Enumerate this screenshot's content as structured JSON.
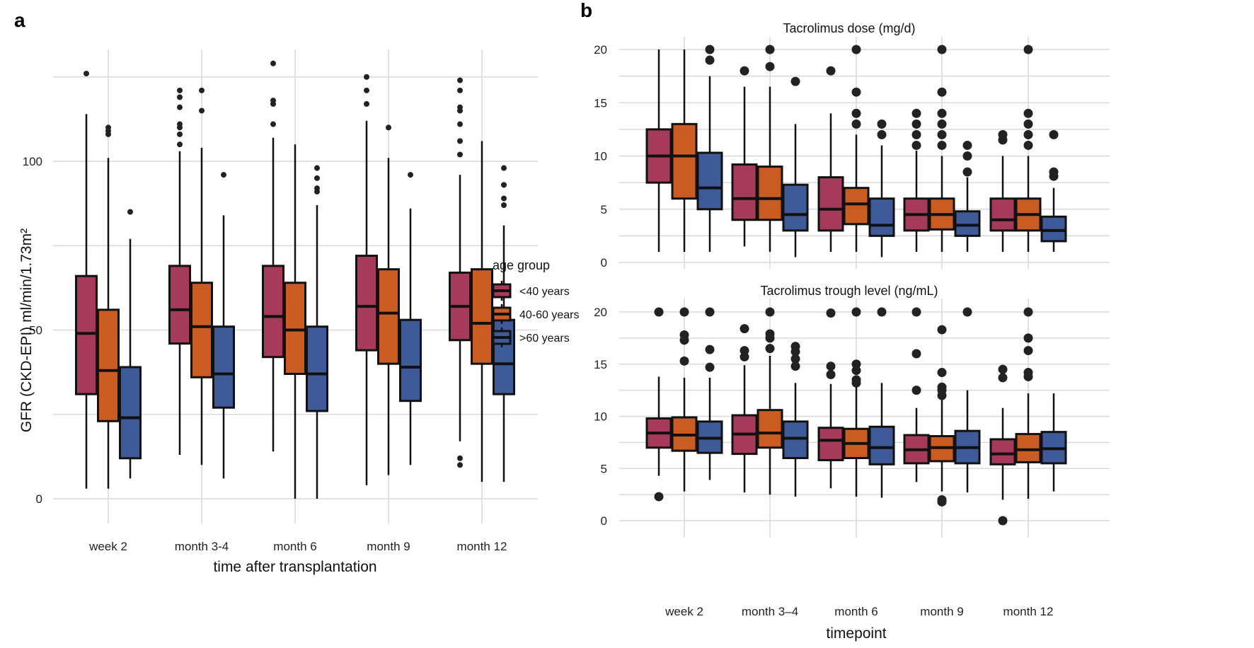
{
  "colors": {
    "lt40": "#a53a5b",
    "40to60": "#c95b23",
    "gt60": "#3f5a98",
    "grid": "#d9d9d9",
    "outlier": "#222222"
  },
  "legend": {
    "title": "age group",
    "placement": "right of panel a",
    "items": [
      {
        "key": "lt40",
        "label": "<40 years"
      },
      {
        "key": "40to60",
        "label": "40-60 years"
      },
      {
        "key": "gt60",
        "label": ">60 years"
      }
    ]
  },
  "chart_data": [
    {
      "panel": "a",
      "type": "box",
      "title": "",
      "xlabel": "time after transplantation",
      "ylabel": "GFR (CKD-EPI) ml/min/1.73m²",
      "ylim": [
        0,
        125
      ],
      "yticks": [
        0,
        50,
        100
      ],
      "grid": true,
      "categories": [
        "week 2",
        "month 3-4",
        "month 6",
        "month 9",
        "month 12"
      ],
      "series": [
        {
          "name": "<40 years",
          "key": "lt40",
          "boxes": [
            {
              "low": 3,
              "q1": 31,
              "median": 49,
              "q3": 66,
              "high": 114,
              "outliers": [
                126
              ]
            },
            {
              "low": 13,
              "q1": 46,
              "median": 56,
              "q3": 69,
              "high": 103,
              "outliers": [
                105,
                108,
                110,
                111,
                116,
                119,
                121
              ]
            },
            {
              "low": 14,
              "q1": 42,
              "median": 54,
              "q3": 69,
              "high": 107,
              "outliers": [
                111,
                117,
                118,
                129
              ]
            },
            {
              "low": 4,
              "q1": 44,
              "median": 57,
              "q3": 72,
              "high": 112,
              "outliers": [
                117,
                121,
                125
              ]
            },
            {
              "low": 17,
              "q1": 47,
              "median": 57,
              "q3": 67,
              "high": 96,
              "outliers": [
                10,
                12,
                102,
                106,
                111,
                115,
                116,
                121,
                124
              ]
            }
          ]
        },
        {
          "name": "40-60 years",
          "key": "40to60",
          "boxes": [
            {
              "low": 3,
              "q1": 23,
              "median": 38,
              "q3": 56,
              "high": 101,
              "outliers": [
                108,
                109,
                110
              ]
            },
            {
              "low": 10,
              "q1": 36,
              "median": 51,
              "q3": 64,
              "high": 104,
              "outliers": [
                115,
                121
              ]
            },
            {
              "low": 0,
              "q1": 37,
              "median": 50,
              "q3": 64,
              "high": 105,
              "outliers": []
            },
            {
              "low": 7,
              "q1": 40,
              "median": 55,
              "q3": 68,
              "high": 101,
              "outliers": [
                110
              ]
            },
            {
              "low": 5,
              "q1": 40,
              "median": 52,
              "q3": 68,
              "high": 106,
              "outliers": []
            }
          ]
        },
        {
          "name": ">60 years",
          "key": "gt60",
          "boxes": [
            {
              "low": 6,
              "q1": 12,
              "median": 24,
              "q3": 39,
              "high": 77,
              "outliers": [
                85
              ]
            },
            {
              "low": 6,
              "q1": 27,
              "median": 37,
              "q3": 51,
              "high": 84,
              "outliers": [
                96
              ]
            },
            {
              "low": 0,
              "q1": 26,
              "median": 37,
              "q3": 51,
              "high": 87,
              "outliers": [
                91,
                92,
                95,
                98
              ]
            },
            {
              "low": 10,
              "q1": 29,
              "median": 39,
              "q3": 53,
              "high": 86,
              "outliers": [
                96
              ]
            },
            {
              "low": 5,
              "q1": 31,
              "median": 40,
              "q3": 53,
              "high": 81,
              "outliers": [
                87,
                89,
                93,
                98
              ]
            }
          ]
        }
      ]
    },
    {
      "panel": "b-top",
      "type": "box",
      "title": "Tacrolimus dose (mg/d)",
      "xlabel": "",
      "ylabel": "",
      "ylim": [
        0,
        20
      ],
      "yticks": [
        0,
        5,
        10,
        15,
        20
      ],
      "grid": true,
      "categories": [
        "week 2",
        "month 3–4",
        "month 6",
        "month 9",
        "month 12"
      ],
      "series": [
        {
          "name": "<40 years",
          "key": "lt40",
          "boxes": [
            {
              "low": 1,
              "q1": 7.5,
              "median": 10,
              "q3": 12.5,
              "high": 20,
              "outliers": []
            },
            {
              "low": 1.5,
              "q1": 4,
              "median": 6,
              "q3": 9.2,
              "high": 16.5,
              "outliers": [
                18
              ]
            },
            {
              "low": 1,
              "q1": 3,
              "median": 5,
              "q3": 8,
              "high": 14,
              "outliers": [
                18
              ]
            },
            {
              "low": 1,
              "q1": 3,
              "median": 4.5,
              "q3": 6,
              "high": 10.5,
              "outliers": [
                11,
                12,
                13,
                14
              ]
            },
            {
              "low": 1,
              "q1": 3,
              "median": 4,
              "q3": 6,
              "high": 10,
              "outliers": [
                11.5,
                12
              ]
            }
          ]
        },
        {
          "name": "40-60 years",
          "key": "40to60",
          "boxes": [
            {
              "low": 1,
              "q1": 6,
              "median": 10,
              "q3": 13,
              "high": 20,
              "outliers": []
            },
            {
              "low": 1,
              "q1": 4,
              "median": 6,
              "q3": 9,
              "high": 16.5,
              "outliers": [
                18.4,
                20
              ]
            },
            {
              "low": 1,
              "q1": 3.6,
              "median": 5.5,
              "q3": 7,
              "high": 12,
              "outliers": [
                13,
                14,
                16,
                20
              ]
            },
            {
              "low": 1,
              "q1": 3.1,
              "median": 4.5,
              "q3": 6,
              "high": 10,
              "outliers": [
                11,
                12,
                13,
                14,
                16,
                20
              ]
            },
            {
              "low": 1,
              "q1": 3,
              "median": 4.5,
              "q3": 6,
              "high": 10,
              "outliers": [
                11,
                12,
                13,
                14,
                20
              ]
            }
          ]
        },
        {
          "name": ">60 years",
          "key": "gt60",
          "boxes": [
            {
              "low": 1,
              "q1": 5,
              "median": 7,
              "q3": 10.3,
              "high": 17.5,
              "outliers": [
                19,
                20
              ]
            },
            {
              "low": 0.5,
              "q1": 3,
              "median": 4.5,
              "q3": 7.3,
              "high": 13,
              "outliers": [
                17
              ]
            },
            {
              "low": 0.5,
              "q1": 2.5,
              "median": 3.5,
              "q3": 6,
              "high": 11,
              "outliers": [
                12,
                13
              ]
            },
            {
              "low": 1,
              "q1": 2.5,
              "median": 3.5,
              "q3": 4.8,
              "high": 8,
              "outliers": [
                8.5,
                10,
                11
              ]
            },
            {
              "low": 1,
              "q1": 2,
              "median": 3,
              "q3": 4.3,
              "high": 7,
              "outliers": [
                8.1,
                8.5,
                12
              ]
            }
          ]
        }
      ]
    },
    {
      "panel": "b-bottom",
      "type": "box",
      "title": "Tacrolimus trough level (ng/mL)",
      "xlabel": "timepoint",
      "ylabel": "",
      "ylim": [
        0,
        20
      ],
      "yticks": [
        0,
        5,
        10,
        15,
        20
      ],
      "grid": true,
      "categories": [
        "week 2",
        "month 3–4",
        "month 6",
        "month 9",
        "month 12"
      ],
      "series": [
        {
          "name": "<40 years",
          "key": "lt40",
          "boxes": [
            {
              "low": 4.3,
              "q1": 7,
              "median": 8.4,
              "q3": 9.8,
              "high": 13.8,
              "outliers": [
                2.3,
                20
              ]
            },
            {
              "low": 2.7,
              "q1": 6.4,
              "median": 8.3,
              "q3": 10.1,
              "high": 14.9,
              "outliers": [
                15.7,
                16.3,
                18.4
              ]
            },
            {
              "low": 3.1,
              "q1": 5.8,
              "median": 7.7,
              "q3": 8.9,
              "high": 13.1,
              "outliers": [
                14,
                14.8,
                19.9
              ]
            },
            {
              "low": 3.7,
              "q1": 5.5,
              "median": 6.8,
              "q3": 8.2,
              "high": 10.8,
              "outliers": [
                12.5,
                16,
                20
              ]
            },
            {
              "low": 2,
              "q1": 5.4,
              "median": 6.4,
              "q3": 7.8,
              "high": 10.8,
              "outliers": [
                0,
                13.7,
                14.5
              ]
            }
          ]
        },
        {
          "name": "40-60 years",
          "key": "40to60",
          "boxes": [
            {
              "low": 2.8,
              "q1": 6.7,
              "median": 8.2,
              "q3": 9.9,
              "high": 13.7,
              "outliers": [
                15.3,
                17.3,
                17.8,
                20
              ]
            },
            {
              "low": 2.5,
              "q1": 7,
              "median": 8.4,
              "q3": 10.6,
              "high": 15.8,
              "outliers": [
                16.5,
                17.5,
                17.9,
                20
              ]
            },
            {
              "low": 2.3,
              "q1": 6,
              "median": 7.4,
              "q3": 8.8,
              "high": 12.9,
              "outliers": [
                13.2,
                13.5,
                14.4,
                15,
                20
              ]
            },
            {
              "low": 2.8,
              "q1": 5.7,
              "median": 7,
              "q3": 8.1,
              "high": 11.6,
              "outliers": [
                1.8,
                2,
                12,
                12.5,
                12.8,
                14.2,
                18.3
              ]
            },
            {
              "low": 2.1,
              "q1": 5.6,
              "median": 6.8,
              "q3": 8.3,
              "high": 12.2,
              "outliers": [
                13.8,
                14.2,
                16.3,
                17.5,
                20
              ]
            }
          ]
        },
        {
          "name": ">60 years",
          "key": "gt60",
          "boxes": [
            {
              "low": 3.9,
              "q1": 6.5,
              "median": 7.9,
              "q3": 9.5,
              "high": 13.7,
              "outliers": [
                14.7,
                16.4,
                20
              ]
            },
            {
              "low": 2.3,
              "q1": 6,
              "median": 7.9,
              "q3": 9.5,
              "high": 13.2,
              "outliers": [
                14.8,
                15.5,
                16.2,
                16.7
              ]
            },
            {
              "low": 2.2,
              "q1": 5.4,
              "median": 7,
              "q3": 9,
              "high": 13.2,
              "outliers": [
                20
              ]
            },
            {
              "low": 2.7,
              "q1": 5.5,
              "median": 7,
              "q3": 8.6,
              "high": 12.5,
              "outliers": [
                20
              ]
            },
            {
              "low": 2.8,
              "q1": 5.5,
              "median": 6.9,
              "q3": 8.5,
              "high": 12.2,
              "outliers": []
            }
          ]
        }
      ]
    }
  ],
  "panels": {
    "a": {
      "label": "a"
    },
    "b": {
      "label": "b"
    }
  }
}
